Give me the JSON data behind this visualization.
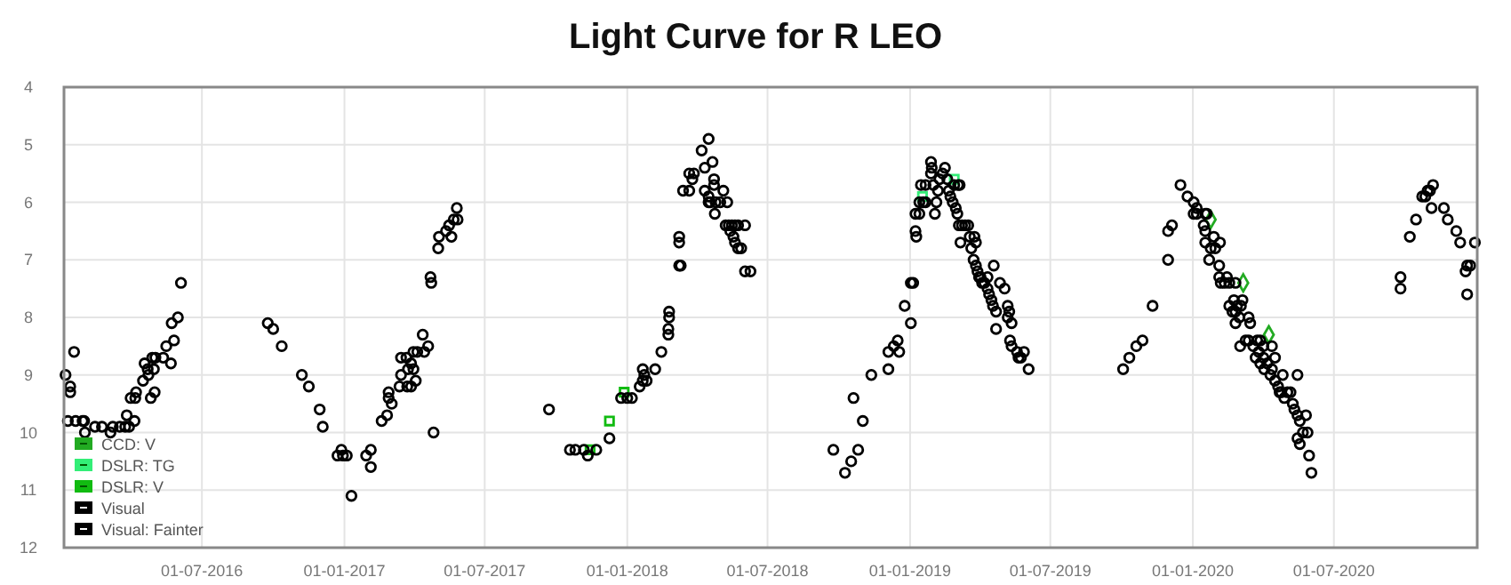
{
  "chart_data": {
    "type": "scatter",
    "title": "Light Curve for R LEO",
    "marker": "circle",
    "grid": true,
    "legend": "bottom left",
    "xlim": [
      "2016-01-05",
      "2021-01-02"
    ],
    "xticks": [
      {
        "value": "2016-07-01",
        "label": "01-07-2016"
      },
      {
        "value": "2017-01-01",
        "label": "01-01-2017"
      },
      {
        "value": "2017-07-01",
        "label": "01-07-2017"
      },
      {
        "value": "2018-01-01",
        "label": "01-01-2018"
      },
      {
        "value": "2018-07-01",
        "label": "01-07-2018"
      },
      {
        "value": "2019-01-01",
        "label": "01-01-2019"
      },
      {
        "value": "2019-07-01",
        "label": "01-07-2019"
      },
      {
        "value": "2020-01-01",
        "label": "01-01-2020"
      },
      {
        "value": "2020-07-01",
        "label": "01-07-2020"
      }
    ],
    "ylim": [
      12,
      4
    ],
    "yticks": [
      4,
      5,
      6,
      7,
      8,
      9,
      10,
      11,
      12
    ],
    "series": [
      {
        "name": "CCD: V",
        "color": "#22aa22",
        "marker": "diamond",
        "x": [
          "2020-01-24",
          "2020-03-06",
          "2020-04-08"
        ],
        "values": [
          6.3,
          7.4,
          8.3
        ]
      },
      {
        "name": "DSLR: TG",
        "color": "#33ee77",
        "marker": "square",
        "x": [
          "2019-01-17",
          "2019-02-27"
        ],
        "values": [
          5.9,
          5.6
        ]
      },
      {
        "name": "DSLR: V",
        "color": "#11bb11",
        "marker": "square",
        "x": [
          "2017-11-14",
          "2017-12-09",
          "2017-12-28"
        ],
        "values": [
          10.3,
          9.8,
          9.3
        ]
      },
      {
        "name": "Visual",
        "color": "#000000",
        "x": [
          "2016-01-07",
          "2016-01-10",
          "2016-01-13",
          "2016-01-13",
          "2016-01-18",
          "2016-01-20",
          "2016-01-29",
          "2016-01-31",
          "2016-02-01",
          "2016-02-14",
          "2016-02-23",
          "2016-03-05",
          "2016-03-08",
          "2016-03-17",
          "2016-03-24",
          "2016-03-26",
          "2016-03-29",
          "2016-03-31",
          "2016-04-05",
          "2016-04-06",
          "2016-04-07",
          "2016-04-16",
          "2016-04-18",
          "2016-04-22",
          "2016-04-23",
          "2016-04-26",
          "2016-04-28",
          "2016-04-30",
          "2016-05-01",
          "2016-05-02",
          "2016-05-12",
          "2016-05-16",
          "2016-05-22",
          "2016-05-23",
          "2016-05-26",
          "2016-05-31",
          "2016-06-04",
          "2016-09-24",
          "2016-10-01",
          "2016-10-12",
          "2016-11-07",
          "2016-11-16",
          "2016-11-30",
          "2016-12-04",
          "2016-12-23",
          "2016-12-28",
          "2016-12-30",
          "2017-01-04",
          "2017-01-10",
          "2017-01-29",
          "2017-02-04",
          "2017-02-04",
          "2017-02-18",
          "2017-02-25",
          "2017-02-27",
          "2017-02-27",
          "2017-03-03",
          "2017-03-13",
          "2017-03-15",
          "2017-03-15",
          "2017-03-22",
          "2017-03-23",
          "2017-03-24",
          "2017-03-28",
          "2017-03-28",
          "2017-03-31",
          "2017-03-31",
          "2017-04-03",
          "2017-04-05",
          "2017-04-12",
          "2017-04-14",
          "2017-04-19",
          "2017-04-22",
          "2017-04-23",
          "2017-04-26",
          "2017-05-02",
          "2017-05-03",
          "2017-05-12",
          "2017-05-16",
          "2017-05-19",
          "2017-05-22",
          "2017-05-26",
          "2017-05-27",
          "2017-09-22",
          "2017-10-19",
          "2017-10-26",
          "2017-11-06",
          "2017-11-11",
          "2017-11-22",
          "2017-12-09",
          "2017-12-24",
          "2018-01-01",
          "2018-01-07",
          "2018-01-17",
          "2018-01-21",
          "2018-01-21",
          "2018-01-23",
          "2018-01-26",
          "2018-02-06",
          "2018-02-14",
          "2018-02-23",
          "2018-02-23",
          "2018-02-24",
          "2018-02-24",
          "2018-03-09",
          "2018-03-09",
          "2018-03-09",
          "2018-03-11",
          "2018-03-14",
          "2018-03-22",
          "2018-03-22",
          "2018-03-26",
          "2018-03-28",
          "2018-04-07",
          "2018-04-16",
          "2018-04-11",
          "2018-04-11",
          "2018-04-16",
          "2018-04-16",
          "2018-04-18",
          "2018-04-21",
          "2018-04-23",
          "2018-04-23",
          "2018-04-24",
          "2018-04-25",
          "2018-05-01",
          "2018-05-05",
          "2018-05-10",
          "2018-05-08",
          "2018-05-12",
          "2018-05-16",
          "2018-05-20",
          "2018-05-24",
          "2018-05-14",
          "2018-05-18",
          "2018-05-20",
          "2018-05-24",
          "2018-05-28",
          "2018-06-02",
          "2018-06-02",
          "2018-06-09",
          "2018-09-24",
          "2018-10-09",
          "2018-10-17",
          "2018-10-20",
          "2018-10-26",
          "2018-11-01",
          "2018-11-12",
          "2018-12-04",
          "2018-12-04",
          "2018-12-11",
          "2018-12-16",
          "2018-12-18",
          "2018-12-25",
          "2019-01-02",
          "2019-01-02",
          "2019-01-05",
          "2019-01-08",
          "2019-01-09",
          "2019-01-08",
          "2019-01-13",
          "2019-01-13",
          "2019-01-18",
          "2019-01-21",
          "2019-01-15",
          "2019-01-21",
          "2019-01-28",
          "2019-01-29",
          "2019-01-28",
          "2019-01-31",
          "2019-02-02",
          "2019-02-04",
          "2019-02-06",
          "2019-02-08",
          "2019-02-12",
          "2019-02-15",
          "2019-02-18",
          "2019-02-20",
          "2019-02-22",
          "2019-02-25",
          "2019-02-27",
          "2019-03-01",
          "2019-03-03",
          "2019-03-04",
          "2019-03-06",
          "2019-03-05",
          "2019-03-09",
          "2019-03-13",
          "2019-03-17",
          "2019-03-07",
          "2019-03-19",
          "2019-03-21",
          "2019-03-25",
          "2019-03-27",
          "2019-03-24",
          "2019-03-27",
          "2019-03-29",
          "2019-03-31",
          "2019-04-02",
          "2019-04-04",
          "2019-04-07",
          "2019-04-11",
          "2019-04-11",
          "2019-04-13",
          "2019-04-16",
          "2019-04-18",
          "2019-04-22",
          "2019-04-22",
          "2019-04-19",
          "2019-04-27",
          "2019-05-03",
          "2019-05-07",
          "2019-05-07",
          "2019-05-09",
          "2019-05-12",
          "2019-05-10",
          "2019-05-12",
          "2019-05-19",
          "2019-05-21",
          "2019-05-24",
          "2019-05-28",
          "2019-06-03",
          "2019-10-03",
          "2019-10-11",
          "2019-10-20",
          "2019-10-28",
          "2019-11-10",
          "2019-11-30",
          "2019-11-30",
          "2019-12-05",
          "2019-12-16",
          "2019-12-25",
          "2020-01-02",
          "2020-01-06",
          "2020-01-02",
          "2020-01-06",
          "2020-01-17",
          "2020-01-19",
          "2020-01-15",
          "2020-01-17",
          "2020-01-17",
          "2020-01-24",
          "2020-01-28",
          "2020-01-30",
          "2020-02-05",
          "2020-01-22",
          "2020-02-04",
          "2020-02-04",
          "2020-02-06",
          "2020-02-11",
          "2020-02-14",
          "2020-02-17",
          "2020-02-25",
          "2020-02-17",
          "2020-02-21",
          "2020-02-23",
          "2020-02-25",
          "2020-02-27",
          "2020-03-01",
          "2020-03-03",
          "2020-03-05",
          "2020-02-25",
          "2020-03-13",
          "2020-03-15",
          "2020-03-02",
          "2020-03-09",
          "2020-03-13",
          "2020-03-19",
          "2020-03-24",
          "2020-03-28",
          "2020-04-01",
          "2020-03-22",
          "2020-03-26",
          "2020-03-28",
          "2020-04-01",
          "2020-04-02",
          "2020-04-06",
          "2020-04-10",
          "2020-04-12",
          "2020-04-16",
          "2020-04-12",
          "2020-04-16",
          "2020-04-20",
          "2020-04-24",
          "2020-04-26",
          "2020-04-22",
          "2020-04-28",
          "2020-05-02",
          "2020-05-06",
          "2020-05-09",
          "2020-05-11",
          "2020-05-15",
          "2020-05-18",
          "2020-05-26",
          "2020-05-15",
          "2020-05-15",
          "2020-05-18",
          "2020-05-22",
          "2020-05-28",
          "2020-05-30",
          "2020-06-02",
          "2020-09-25",
          "2020-09-25",
          "2020-10-07",
          "2020-10-15",
          "2020-10-23",
          "2020-10-27",
          "2020-10-30",
          "2020-11-02",
          "2020-11-06",
          "2020-11-04",
          "2020-11-20",
          "2020-11-25",
          "2020-12-06",
          "2020-12-11",
          "2020-12-18",
          "2020-12-20",
          "2020-12-24",
          "2020-12-20",
          "2020-12-30"
        ],
        "values": [
          9.0,
          9.8,
          9.2,
          9.3,
          8.6,
          9.8,
          9.8,
          9.8,
          10.0,
          9.9,
          9.9,
          10.0,
          9.9,
          9.9,
          9.9,
          9.7,
          9.9,
          9.4,
          9.8,
          9.4,
          9.3,
          9.1,
          8.8,
          8.9,
          9.0,
          9.4,
          8.7,
          8.9,
          9.3,
          8.7,
          8.7,
          8.5,
          8.8,
          8.1,
          8.4,
          8.0,
          7.4,
          8.1,
          8.2,
          8.5,
          9.0,
          9.2,
          9.6,
          9.9,
          10.4,
          10.3,
          10.4,
          10.4,
          11.1,
          10.4,
          10.3,
          10.6,
          9.8,
          9.7,
          9.3,
          9.4,
          9.5,
          9.2,
          9.0,
          8.7,
          8.7,
          9.2,
          8.9,
          8.8,
          9.2,
          8.6,
          8.9,
          9.1,
          8.6,
          8.3,
          8.6,
          8.5,
          7.3,
          7.4,
          10.0,
          6.8,
          6.6,
          6.5,
          6.4,
          6.6,
          6.3,
          6.1,
          6.3,
          9.6,
          10.3,
          10.3,
          10.3,
          10.4,
          10.3,
          10.1,
          9.4,
          9.4,
          9.4,
          9.2,
          8.9,
          9.1,
          9.0,
          9.1,
          8.9,
          8.6,
          8.3,
          8.2,
          8.0,
          7.9,
          7.1,
          6.7,
          6.6,
          7.1,
          5.8,
          5.8,
          5.5,
          5.6,
          5.5,
          5.1,
          4.9,
          5.4,
          5.8,
          5.9,
          6.0,
          6.0,
          5.3,
          5.6,
          5.7,
          6.2,
          6.0,
          6.0,
          5.8,
          6.0,
          6.4,
          6.4,
          6.4,
          6.4,
          6.4,
          6.5,
          6.6,
          6.7,
          6.8,
          6.8,
          6.4,
          7.2,
          7.2,
          10.3,
          10.7,
          10.5,
          9.4,
          10.3,
          9.8,
          9.0,
          8.9,
          8.6,
          8.5,
          8.4,
          8.6,
          7.8,
          8.1,
          7.4,
          7.4,
          6.5,
          6.6,
          6.2,
          6.2,
          6.0,
          6.0,
          6.0,
          5.7,
          5.7,
          5.3,
          5.4,
          5.5,
          5.7,
          6.2,
          6.0,
          5.8,
          5.6,
          5.5,
          5.4,
          5.6,
          5.8,
          5.9,
          6.0,
          5.7,
          6.1,
          6.2,
          5.7,
          5.7,
          6.4,
          6.4,
          6.4,
          6.4,
          6.7,
          6.6,
          6.8,
          6.6,
          6.7,
          7.0,
          7.1,
          7.2,
          7.3,
          7.3,
          7.4,
          7.4,
          7.3,
          7.5,
          7.6,
          7.7,
          7.8,
          7.9,
          8.2,
          7.1,
          7.4,
          7.5,
          7.8,
          8.0,
          7.9,
          8.1,
          8.4,
          8.5,
          8.6,
          8.7,
          8.7,
          8.6,
          8.9,
          8.9,
          8.7,
          8.5,
          8.4,
          7.8,
          7.0,
          6.5,
          6.4,
          5.7,
          5.9,
          6.0,
          6.1,
          6.2,
          6.2,
          6.2,
          6.2,
          6.4,
          6.5,
          6.7,
          6.8,
          6.6,
          6.8,
          6.7,
          7.0,
          7.1,
          7.3,
          7.4,
          7.4,
          7.3,
          7.4,
          7.4,
          7.8,
          7.9,
          7.7,
          7.9,
          7.8,
          8.0,
          7.8,
          7.7,
          8.1,
          8.0,
          8.1,
          8.5,
          8.4,
          8.4,
          8.5,
          8.4,
          8.4,
          8.5,
          8.7,
          8.6,
          8.8,
          8.7,
          8.9,
          8.8,
          9.0,
          8.9,
          8.7,
          8.5,
          9.1,
          9.2,
          9.3,
          9.0,
          9.3,
          9.4,
          9.3,
          9.3,
          9.5,
          9.6,
          9.7,
          9.8,
          9.7,
          9.0,
          10.1,
          10.2,
          10.0,
          10.0,
          10.4,
          10.7,
          7.3,
          7.5,
          6.6,
          6.3,
          5.9,
          5.9,
          5.8,
          5.8,
          5.7,
          6.1,
          6.1,
          6.3,
          6.5,
          6.7,
          7.2,
          7.1,
          7.1,
          7.6,
          6.7
        ]
      },
      {
        "name": "Visual: Fainter",
        "color": "#000000"
      }
    ]
  }
}
